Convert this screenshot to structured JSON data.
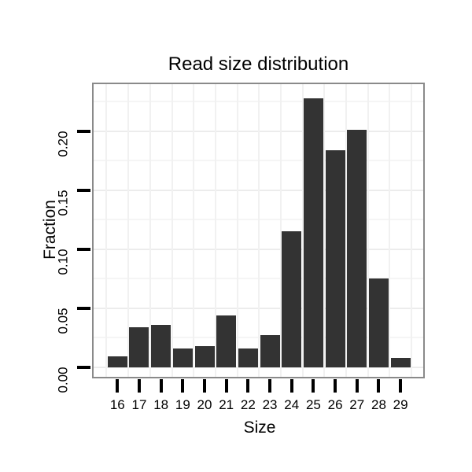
{
  "chart_data": {
    "type": "bar",
    "title": "Read size distribution",
    "xlabel": "Size",
    "ylabel": "Fraction",
    "categories": [
      "16",
      "17",
      "18",
      "19",
      "20",
      "21",
      "22",
      "23",
      "24",
      "25",
      "26",
      "27",
      "28",
      "29"
    ],
    "values": [
      0.009,
      0.034,
      0.036,
      0.016,
      0.018,
      0.044,
      0.016,
      0.027,
      0.115,
      0.228,
      0.184,
      0.201,
      0.075,
      0.008
    ],
    "yticks": [
      {
        "label": "0.00",
        "value": 0.0
      },
      {
        "label": "0.05",
        "value": 0.05
      },
      {
        "label": "0.10",
        "value": 0.1
      },
      {
        "label": "0.15",
        "value": 0.15
      },
      {
        "label": "0.20",
        "value": 0.2
      }
    ],
    "ylim": [
      0,
      0.2395
    ],
    "grid": {
      "horizontal_minor_step": 0.025,
      "vertical": "between-categories",
      "visible": true
    },
    "legend": "none",
    "colors": {
      "bar": "#333333",
      "panel_border": "#8a8a8a",
      "grid_major": "#ececec",
      "grid_minor": "#f5f5f5",
      "grid_vertical": "#f1f1f1",
      "text": "#000000",
      "background": "#ffffff"
    }
  }
}
